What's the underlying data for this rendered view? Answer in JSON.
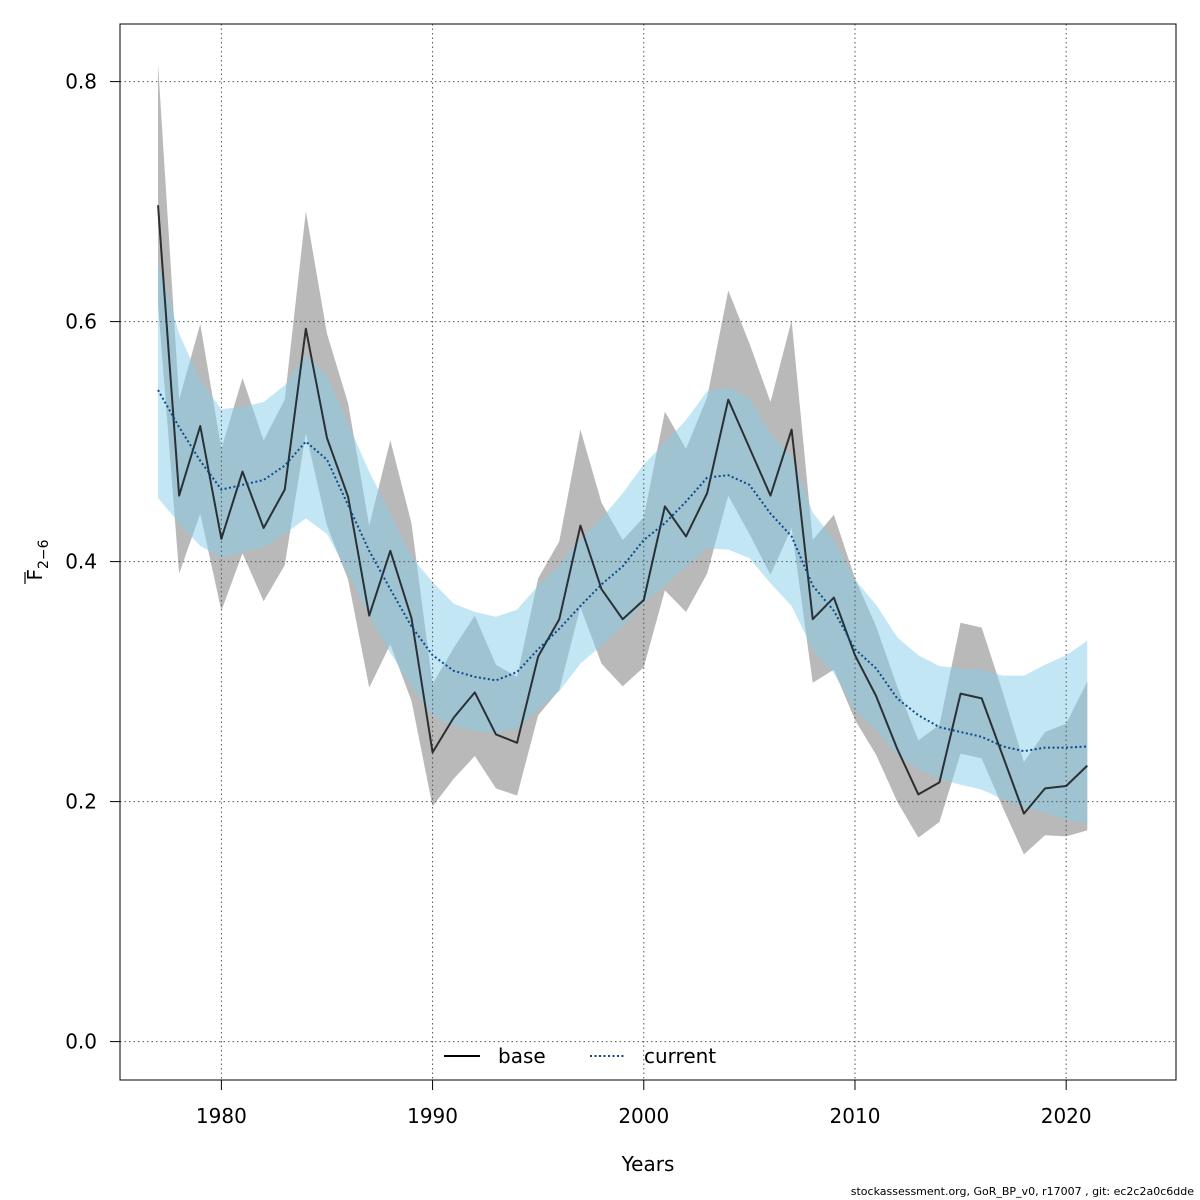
{
  "chart_data": {
    "type": "line",
    "title": "",
    "xlabel": "Years",
    "ylabel": "F̅ 2−6",
    "ylabel_main": "F",
    "ylabel_sub": "2−6",
    "xlim": [
      1975.2,
      2025.2
    ],
    "ylim": [
      -0.032,
      0.848
    ],
    "xticks": [
      1980,
      1990,
      2000,
      2010,
      2020
    ],
    "yticks": [
      0.0,
      0.2,
      0.4,
      0.6,
      0.8
    ],
    "xtick_labels": [
      "1980",
      "1990",
      "2000",
      "2010",
      "2020"
    ],
    "ytick_labels": [
      "0.0",
      "0.2",
      "0.4",
      "0.6",
      "0.8"
    ],
    "grid": true,
    "legend_position": "bottom",
    "x": [
      1977,
      1978,
      1979,
      1980,
      1981,
      1982,
      1983,
      1984,
      1985,
      1986,
      1987,
      1988,
      1989,
      1990,
      1991,
      1992,
      1993,
      1994,
      1995,
      1996,
      1997,
      1998,
      1999,
      2000,
      2001,
      2002,
      2003,
      2004,
      2005,
      2006,
      2007,
      2008,
      2009,
      2010,
      2011,
      2012,
      2013,
      2014,
      2015,
      2016,
      2017,
      2018,
      2019,
      2020,
      2021
    ],
    "series": [
      {
        "name": "base",
        "color": "#000000",
        "band_color": "#808080",
        "values": [
          0.697,
          0.455,
          0.513,
          0.419,
          0.475,
          0.428,
          0.46,
          0.594,
          0.503,
          0.454,
          0.355,
          0.409,
          0.353,
          0.241,
          0.27,
          0.291,
          0.256,
          0.249,
          0.321,
          0.352,
          0.43,
          0.377,
          0.352,
          0.368,
          0.446,
          0.421,
          0.457,
          0.535,
          0.495,
          0.455,
          0.51,
          0.352,
          0.37,
          0.322,
          0.288,
          0.244,
          0.206,
          0.216,
          0.29,
          0.286,
          0.238,
          0.19,
          0.211,
          0.213,
          0.23
        ],
        "lower": [
          0.615,
          0.39,
          0.44,
          0.359,
          0.407,
          0.367,
          0.397,
          0.507,
          0.43,
          0.385,
          0.295,
          0.331,
          0.284,
          0.196,
          0.219,
          0.238,
          0.211,
          0.205,
          0.272,
          0.293,
          0.362,
          0.315,
          0.296,
          0.312,
          0.376,
          0.358,
          0.39,
          0.455,
          0.423,
          0.389,
          0.428,
          0.299,
          0.31,
          0.268,
          0.239,
          0.2,
          0.17,
          0.183,
          0.24,
          0.236,
          0.195,
          0.156,
          0.172,
          0.171,
          0.176
        ],
        "upper": [
          0.815,
          0.535,
          0.598,
          0.494,
          0.553,
          0.501,
          0.535,
          0.692,
          0.59,
          0.532,
          0.43,
          0.501,
          0.432,
          0.298,
          0.328,
          0.355,
          0.314,
          0.304,
          0.386,
          0.417,
          0.51,
          0.449,
          0.418,
          0.437,
          0.525,
          0.494,
          0.537,
          0.626,
          0.582,
          0.533,
          0.601,
          0.418,
          0.439,
          0.386,
          0.346,
          0.296,
          0.251,
          0.264,
          0.349,
          0.345,
          0.291,
          0.233,
          0.258,
          0.265,
          0.3
        ]
      },
      {
        "name": "current",
        "color": "#0a4a8c",
        "band_color": "#87ceeb",
        "values": [
          0.543,
          0.512,
          0.484,
          0.46,
          0.464,
          0.468,
          0.48,
          0.5,
          0.485,
          0.447,
          0.409,
          0.377,
          0.346,
          0.322,
          0.309,
          0.304,
          0.301,
          0.308,
          0.327,
          0.344,
          0.363,
          0.381,
          0.396,
          0.418,
          0.432,
          0.45,
          0.47,
          0.472,
          0.464,
          0.44,
          0.421,
          0.38,
          0.359,
          0.327,
          0.311,
          0.286,
          0.272,
          0.262,
          0.258,
          0.254,
          0.246,
          0.242,
          0.245,
          0.245,
          0.246
        ],
        "lower": [
          0.453,
          0.432,
          0.413,
          0.403,
          0.408,
          0.412,
          0.423,
          0.436,
          0.423,
          0.39,
          0.355,
          0.324,
          0.296,
          0.272,
          0.263,
          0.259,
          0.257,
          0.261,
          0.277,
          0.292,
          0.315,
          0.33,
          0.346,
          0.366,
          0.38,
          0.396,
          0.411,
          0.41,
          0.403,
          0.382,
          0.363,
          0.327,
          0.307,
          0.276,
          0.26,
          0.239,
          0.227,
          0.219,
          0.214,
          0.21,
          0.202,
          0.195,
          0.191,
          0.185,
          0.182
        ],
        "upper": [
          0.65,
          0.59,
          0.551,
          0.527,
          0.529,
          0.533,
          0.547,
          0.572,
          0.555,
          0.515,
          0.475,
          0.44,
          0.404,
          0.383,
          0.365,
          0.358,
          0.354,
          0.36,
          0.38,
          0.397,
          0.419,
          0.436,
          0.457,
          0.481,
          0.499,
          0.518,
          0.542,
          0.545,
          0.536,
          0.507,
          0.488,
          0.441,
          0.418,
          0.385,
          0.364,
          0.337,
          0.322,
          0.313,
          0.311,
          0.31,
          0.305,
          0.305,
          0.314,
          0.322,
          0.334
        ]
      }
    ]
  },
  "footer": "stockassessment.org, GoR_BP_v0, r17007 , git: ec2c2a0c6dde"
}
